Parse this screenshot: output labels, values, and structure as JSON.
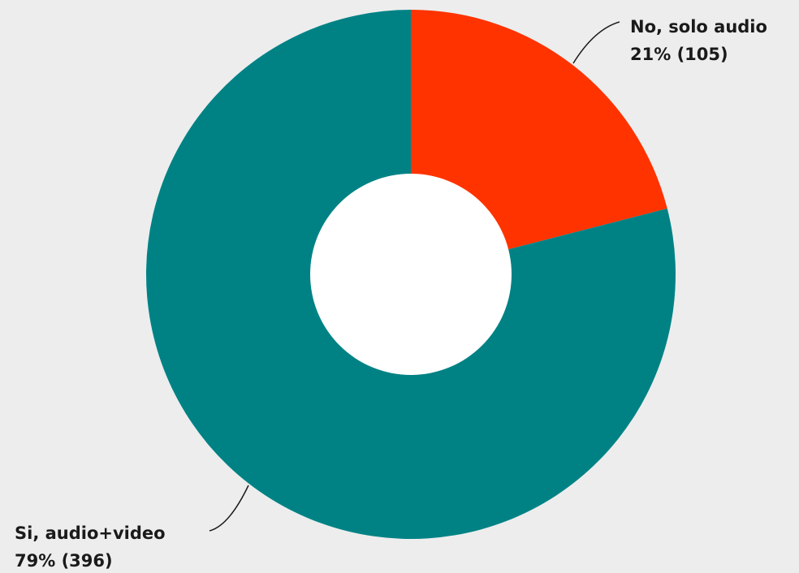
{
  "chart_data": {
    "type": "pie",
    "variant": "donut",
    "slices": [
      {
        "label": "No, solo audio",
        "value_label": "21% (105)",
        "percent": 21,
        "count": 105,
        "color": "#ff3300"
      },
      {
        "label": "Si, audio+video",
        "value_label": "79% (396)",
        "percent": 79,
        "count": 396,
        "color": "#008285"
      }
    ],
    "legend": "none"
  },
  "colors": {
    "background": "#ededed",
    "hole": "#ffffff",
    "leader_line": "#1a1a1a"
  }
}
